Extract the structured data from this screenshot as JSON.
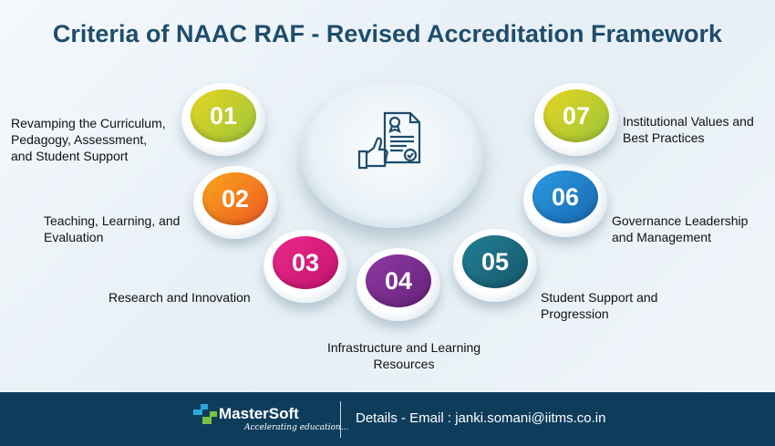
{
  "title": "Criteria of NAAC RAF - Revised Accreditation Framework",
  "center_icon": "certificate-thumbs-up-icon",
  "criteria": [
    {
      "number": "01",
      "label": [
        "Revamping the Curriculum,",
        "Pedagogy, Assessment,",
        "and Student Support"
      ],
      "color": "#b6cc2e"
    },
    {
      "number": "02",
      "label": [
        "Teaching, Learning, and",
        "Evaluation"
      ],
      "color": "#f47b20"
    },
    {
      "number": "03",
      "label": [
        "Research and Innovation"
      ],
      "color": "#d81b7f"
    },
    {
      "number": "04",
      "label": [
        "Infrastructure and Learning",
        "Resources"
      ],
      "color": "#7b2d8f"
    },
    {
      "number": "05",
      "label": [
        "Student Support and",
        "Progression"
      ],
      "color": "#1d6b80"
    },
    {
      "number": "06",
      "label": [
        "Governance Leadership",
        "and Management"
      ],
      "color": "#1f86d0"
    },
    {
      "number": "07",
      "label": [
        "Institutional Values and",
        "Best Practices"
      ],
      "color": "#b6cc2e"
    }
  ],
  "footer": {
    "brand": "MasterSoft",
    "tagline": "Accelerating education...",
    "details": "Details - Email : janki.somani@iitms.co.in"
  }
}
